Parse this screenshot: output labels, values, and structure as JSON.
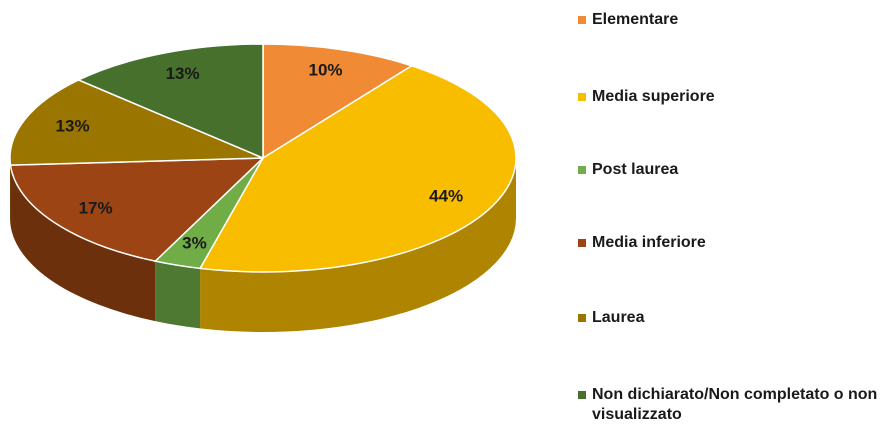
{
  "chart_data": {
    "type": "pie",
    "categories": [
      "Elementare",
      "Media superiore",
      "Post laurea",
      "Media inferiore",
      "Laurea",
      "Non dichiarato/Non completato o non visualizzato"
    ],
    "values": [
      10,
      44,
      3,
      17,
      13,
      13
    ],
    "value_labels": [
      "10%",
      "44%",
      "3%",
      "17%",
      "13%",
      "13%"
    ],
    "colors": [
      "#f08a35",
      "#f9bd00",
      "#70ad47",
      "#9c4413",
      "#9a7600",
      "#47702d"
    ],
    "legend": "right"
  }
}
